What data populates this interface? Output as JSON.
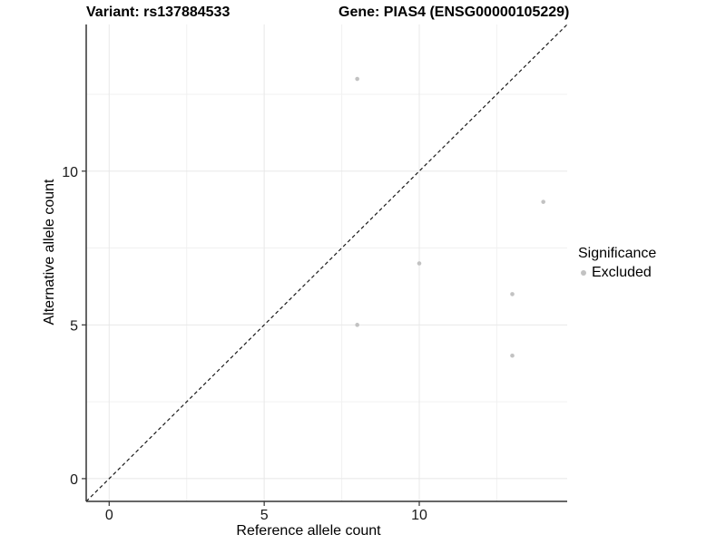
{
  "titles": {
    "variant": "Variant: rs137884533",
    "gene": "Gene: PIAS4 (ENSG00000105229)"
  },
  "chart_data": {
    "type": "scatter",
    "title_left": "Variant: rs137884533",
    "title_right": "Gene: PIAS4 (ENSG00000105229)",
    "xlabel": "Reference allele count",
    "ylabel": "Alternative allele count",
    "xlim": [
      -0.74,
      14.77
    ],
    "ylim": [
      -0.74,
      14.77
    ],
    "x_ticks": [
      0,
      5,
      10
    ],
    "y_ticks": [
      0,
      5,
      10
    ],
    "grid_major": [
      0,
      5,
      10
    ],
    "grid_minor": [
      2.5,
      7.5,
      12.5
    ],
    "series": [
      {
        "name": "Excluded",
        "points": [
          {
            "x": 8,
            "y": 13
          },
          {
            "x": 8,
            "y": 5
          },
          {
            "x": 10,
            "y": 7
          },
          {
            "x": 13,
            "y": 6
          },
          {
            "x": 13,
            "y": 4
          },
          {
            "x": 14,
            "y": 9
          }
        ]
      }
    ],
    "identity_line": {
      "style": "dashed",
      "from": [
        -0.74,
        -0.74
      ],
      "to": [
        14.77,
        14.77
      ]
    },
    "legend": {
      "position": "right",
      "title": "Significance",
      "items": [
        {
          "label": "Excluded",
          "color": "#c2c2c2"
        }
      ]
    },
    "colors": {
      "point": "#c2c2c2",
      "grid_major": "#e8e8e8",
      "grid_minor": "#f1f1f1",
      "axis": "#333333",
      "dashed_line": "#1a1a1a",
      "tick": "#333333"
    },
    "grid": true
  }
}
